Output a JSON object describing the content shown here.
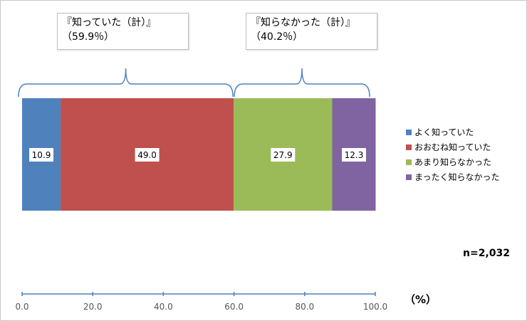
{
  "chart_data": {
    "type": "bar",
    "orientation": "horizontal-stacked",
    "series": [
      {
        "name": "よく知っていた",
        "value": 10.9,
        "color": "#4f81bd"
      },
      {
        "name": "おおむね知っていた",
        "value": 49.0,
        "color": "#c0504d"
      },
      {
        "name": "あまり知らなかった",
        "value": 27.9,
        "color": "#9bbb59"
      },
      {
        "name": "まったく知らなかった",
        "value": 12.3,
        "color": "#8064a2"
      }
    ],
    "xlim": [
      0,
      100
    ],
    "ticks": [
      "0.0",
      "20.0",
      "40.0",
      "60.0",
      "80.0",
      "100.0"
    ],
    "tick_values": [
      0,
      20,
      40,
      60,
      80,
      100
    ],
    "unit": "（%）",
    "legend_position": "right",
    "groups": [
      {
        "title": "『知っていた（計）』",
        "subtitle": "（59.9％）",
        "from": 0,
        "to": 59.9
      },
      {
        "title": "『知らなかった（計）』",
        "subtitle": "（40.2％）",
        "from": 59.9,
        "to": 100
      }
    ],
    "n_label": "n=2,032",
    "axis_color": "#4f81bd",
    "bracket_color": "#4f81bd"
  }
}
